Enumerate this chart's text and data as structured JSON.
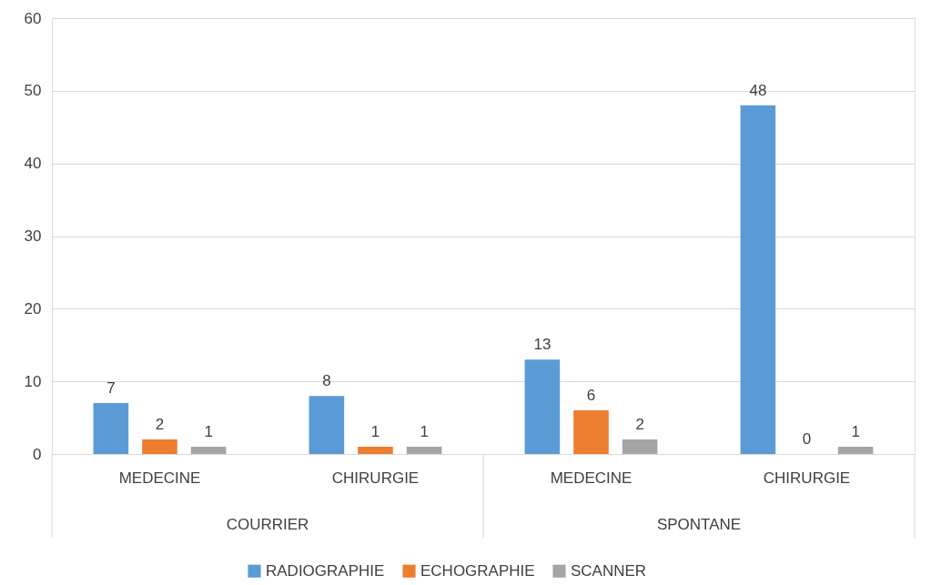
{
  "chart_data": {
    "type": "bar",
    "categories": [
      "MEDECINE",
      "CHIRURGIE",
      "MEDECINE",
      "CHIRURGIE"
    ],
    "series": [
      {
        "name": "RADIOGRAPHIE",
        "color": "#5b9bd5",
        "values": [
          7,
          8,
          13,
          48
        ]
      },
      {
        "name": "ECHOGRAPHIE",
        "color": "#ed7d31",
        "values": [
          2,
          1,
          6,
          0
        ]
      },
      {
        "name": "SCANNER",
        "color": "#a5a5a5",
        "values": [
          1,
          1,
          2,
          1
        ]
      }
    ],
    "annotations": [
      "COURRIER",
      "SPONTANE"
    ],
    "ylim": [
      0,
      60
    ],
    "yticks": [
      0,
      10,
      20,
      30,
      40,
      50,
      60
    ],
    "grid": "y",
    "legend": "bottom",
    "data_labels": true
  }
}
